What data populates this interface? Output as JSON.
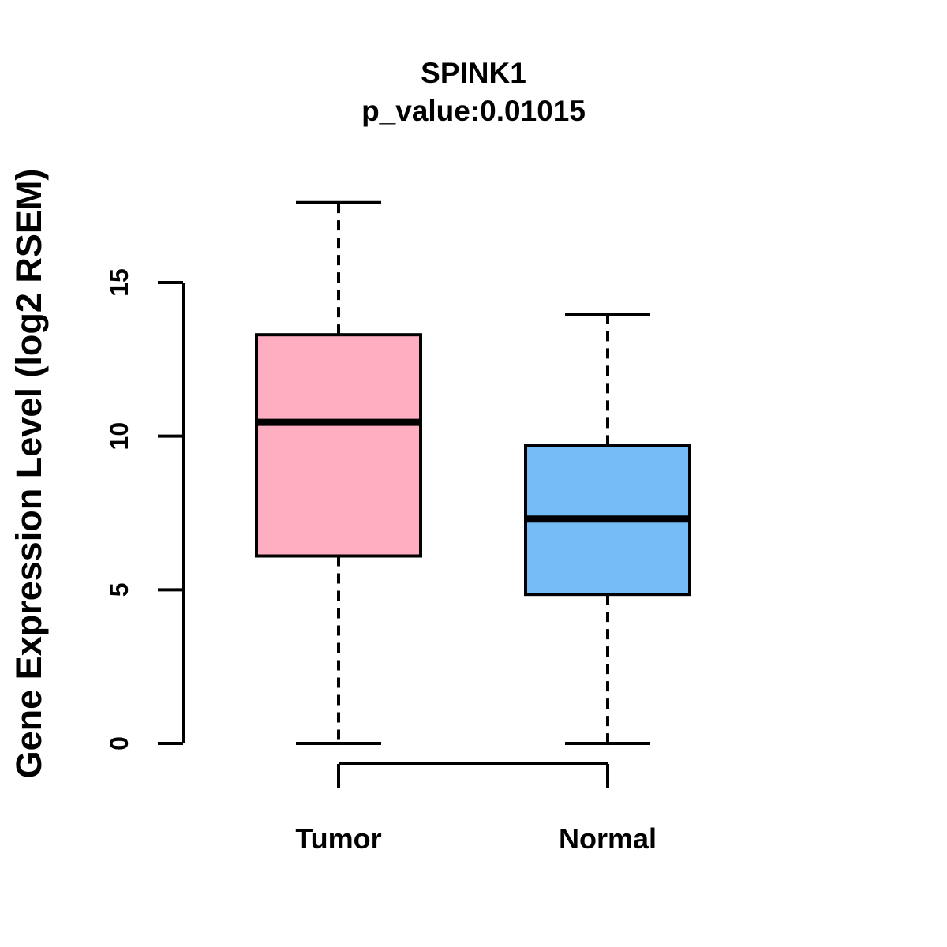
{
  "chart_data": {
    "type": "boxplot",
    "title": "SPINK1",
    "subtitle": "p_value:0.01015",
    "ylabel": "Gene Expression Level (log2 RSEM)",
    "xlabel": "",
    "categories": [
      "Tumor",
      "Normal"
    ],
    "series": [
      {
        "name": "Tumor",
        "color": "#FFAEC1",
        "lower_whisker": 0,
        "q1": 6.1,
        "median": 10.45,
        "q3": 13.3,
        "upper_whisker": 17.6
      },
      {
        "name": "Normal",
        "color": "#74BDF7",
        "lower_whisker": 0,
        "q1": 4.85,
        "median": 7.3,
        "q3": 9.7,
        "upper_whisker": 13.95
      }
    ],
    "yticks": [
      0,
      5,
      10,
      15
    ],
    "ylim": [
      0,
      17.8
    ],
    "grid": false,
    "legend": "none",
    "axis_color": "#000000",
    "median_color": "#000000",
    "background": "#FFFFFF"
  }
}
